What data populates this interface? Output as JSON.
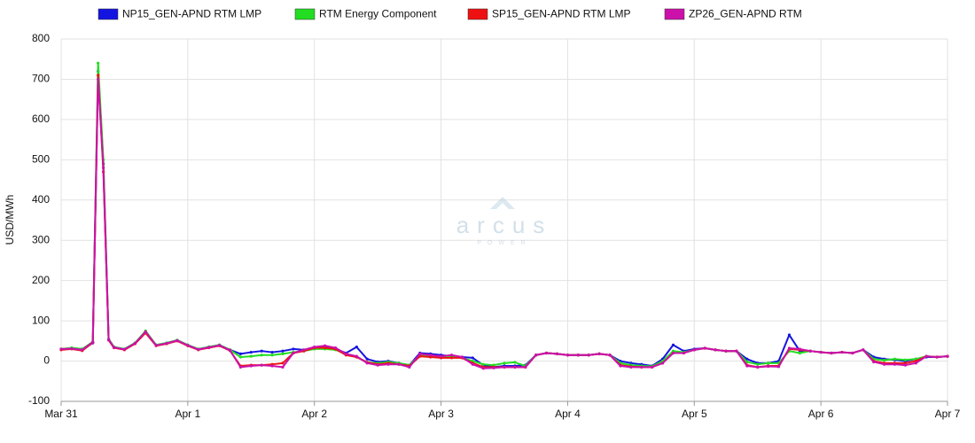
{
  "chart_data": {
    "type": "line",
    "ylabel": "USD/MWh",
    "watermark": {
      "name": "arcus",
      "tagline": "POWER"
    },
    "legend": "top",
    "grid": true,
    "x": [
      0,
      2,
      4,
      6,
      7,
      8,
      9,
      10,
      12,
      14,
      16,
      18,
      20,
      22,
      24,
      26,
      28,
      30,
      32,
      34,
      36,
      38,
      40,
      42,
      44,
      46,
      48,
      50,
      52,
      54,
      56,
      58,
      60,
      62,
      64,
      66,
      68,
      70,
      72,
      74,
      76,
      78,
      80,
      82,
      84,
      86,
      88,
      90,
      92,
      94,
      96,
      98,
      100,
      102,
      104,
      106,
      108,
      110,
      112,
      114,
      116,
      118,
      120,
      122,
      124,
      126,
      128,
      130,
      132,
      134,
      136,
      138,
      140,
      142,
      144,
      146,
      148,
      150,
      152,
      154,
      156,
      158,
      160,
      162,
      164,
      166,
      168
    ],
    "xlim": [
      0,
      168
    ],
    "xticks": [
      {
        "value": 0,
        "label": "Mar 31"
      },
      {
        "value": 24,
        "label": "Apr 1"
      },
      {
        "value": 48,
        "label": "Apr 2"
      },
      {
        "value": 72,
        "label": "Apr 3"
      },
      {
        "value": 96,
        "label": "Apr 4"
      },
      {
        "value": 120,
        "label": "Apr 5"
      },
      {
        "value": 144,
        "label": "Apr 6"
      },
      {
        "value": 168,
        "label": "Apr 7"
      }
    ],
    "ylim": [
      -100,
      800
    ],
    "yticks": [
      -100,
      0,
      100,
      200,
      300,
      400,
      500,
      600,
      700,
      800
    ],
    "series": [
      {
        "name": "NP15_GEN-APND RTM LMP",
        "color": "#1414e0",
        "values": [
          30,
          32,
          30,
          45,
          720,
          490,
          55,
          35,
          30,
          45,
          72,
          40,
          45,
          52,
          40,
          30,
          35,
          40,
          28,
          18,
          22,
          25,
          22,
          25,
          30,
          28,
          32,
          35,
          30,
          20,
          35,
          5,
          -2,
          0,
          -5,
          -10,
          20,
          18,
          15,
          12,
          10,
          8,
          -10,
          -15,
          -12,
          -12,
          -10,
          15,
          20,
          18,
          15,
          15,
          15,
          18,
          15,
          0,
          -5,
          -8,
          -12,
          5,
          40,
          25,
          30,
          32,
          28,
          25,
          25,
          5,
          -5,
          -5,
          0,
          65,
          25,
          25,
          22,
          20,
          22,
          20,
          28,
          10,
          5,
          3,
          0,
          5,
          10,
          10,
          12
        ]
      },
      {
        "name": "RTM Energy Component",
        "color": "#22dd22",
        "values": [
          30,
          33,
          30,
          48,
          740,
          500,
          55,
          35,
          30,
          45,
          75,
          40,
          45,
          52,
          40,
          30,
          35,
          40,
          28,
          10,
          12,
          15,
          15,
          18,
          22,
          25,
          30,
          30,
          28,
          18,
          10,
          -3,
          -5,
          -2,
          -5,
          -10,
          15,
          12,
          10,
          10,
          8,
          0,
          -8,
          -10,
          -5,
          -3,
          -12,
          15,
          20,
          18,
          15,
          15,
          15,
          18,
          15,
          -5,
          -10,
          -12,
          -13,
          0,
          25,
          22,
          28,
          32,
          28,
          25,
          25,
          -2,
          -8,
          -5,
          -5,
          25,
          20,
          25,
          22,
          20,
          22,
          20,
          28,
          5,
          2,
          5,
          3,
          5,
          12,
          10,
          12
        ]
      },
      {
        "name": "SP15_GEN-APND RTM LMP",
        "color": "#ee1111",
        "values": [
          28,
          30,
          26,
          46,
          710,
          470,
          52,
          33,
          28,
          43,
          70,
          38,
          43,
          50,
          38,
          28,
          33,
          38,
          26,
          -12,
          -10,
          -10,
          -8,
          -5,
          20,
          25,
          33,
          33,
          30,
          15,
          10,
          -3,
          -8,
          -5,
          -8,
          -12,
          12,
          10,
          8,
          8,
          8,
          -5,
          -15,
          -15,
          -15,
          -15,
          -15,
          15,
          20,
          18,
          15,
          15,
          15,
          18,
          15,
          -10,
          -14,
          -15,
          -15,
          -5,
          20,
          20,
          28,
          32,
          28,
          25,
          25,
          -10,
          -15,
          -12,
          -12,
          30,
          28,
          25,
          22,
          20,
          22,
          20,
          28,
          0,
          -5,
          -5,
          -5,
          0,
          12,
          10,
          12
        ]
      },
      {
        "name": "ZP26_GEN-APND RTM",
        "color": "#cc11aa",
        "values": [
          30,
          31,
          28,
          47,
          700,
          480,
          53,
          34,
          29,
          44,
          73,
          39,
          44,
          51,
          39,
          29,
          34,
          39,
          27,
          -15,
          -12,
          -10,
          -12,
          -15,
          20,
          28,
          35,
          38,
          33,
          18,
          12,
          -5,
          -10,
          -8,
          -8,
          -15,
          18,
          15,
          12,
          15,
          10,
          -8,
          -18,
          -17,
          -15,
          -15,
          -15,
          15,
          20,
          18,
          15,
          15,
          15,
          18,
          15,
          -12,
          -15,
          -15,
          -15,
          -5,
          20,
          20,
          28,
          32,
          28,
          25,
          25,
          -12,
          -15,
          -13,
          -14,
          32,
          30,
          25,
          22,
          20,
          22,
          20,
          28,
          -2,
          -8,
          -8,
          -10,
          -5,
          12,
          10,
          12
        ]
      }
    ]
  }
}
